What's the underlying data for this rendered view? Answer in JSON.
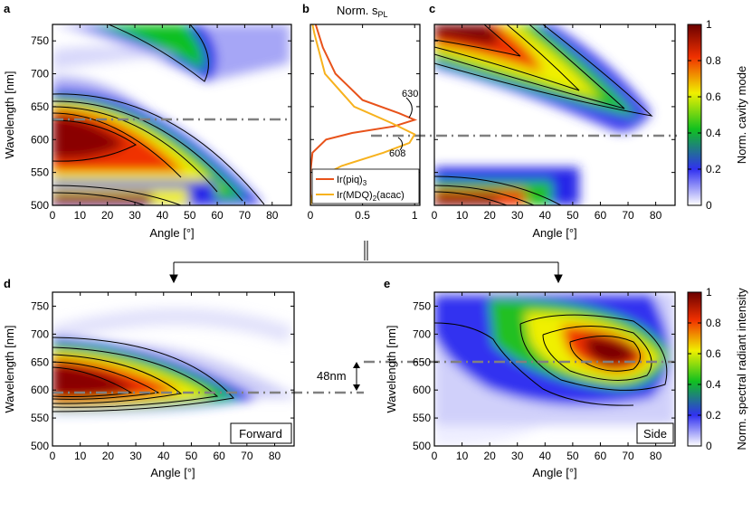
{
  "panels": {
    "a": {
      "label": "a"
    },
    "b": {
      "label": "b",
      "title": "Norm. s",
      "title_sub": "PL"
    },
    "c": {
      "label": "c"
    },
    "d": {
      "label": "d",
      "tag": "Forward"
    },
    "e": {
      "label": "e",
      "tag": "Side"
    }
  },
  "colorbar_top": {
    "label": "Norm. cavity mode",
    "ticks": [
      "0",
      "0.2",
      "0.4",
      "0.6",
      "0.8",
      "1"
    ]
  },
  "colorbar_bottom": {
    "label": "Norm. spectral radiant intensity",
    "ticks": [
      "0",
      "0.2",
      "0.4",
      "0.6",
      "0.8",
      "1"
    ]
  },
  "annotations": {
    "peak1": "630",
    "peak2": "608",
    "shift": "48nm"
  },
  "legend": [
    {
      "name": "Ir(piq)",
      "sub": "3",
      "color": "#e8521a"
    },
    {
      "name": "Ir(MDQ)",
      "sub": "2",
      "tail": "(acac)",
      "color": "#f7b21e"
    }
  ],
  "colors": {
    "colormap": [
      "#ffffff",
      "#3030f0",
      "#10c020",
      "#f0f000",
      "#f03000",
      "#6a0000"
    ]
  },
  "chart_data": [
    {
      "id": "a",
      "type": "heatmap",
      "xlabel": "Angle [°]",
      "ylabel": "Wavelength [nm]",
      "xlim": [
        0,
        87
      ],
      "ylim": [
        500,
        775
      ],
      "xticks": [
        0,
        10,
        20,
        30,
        40,
        50,
        60,
        70,
        80
      ],
      "yticks": [
        500,
        550,
        600,
        650,
        700,
        750
      ],
      "dashed_line_wavelength": 630
    },
    {
      "id": "b",
      "type": "line",
      "xlabel": "",
      "ylabel": "",
      "xlim": [
        0,
        1.05
      ],
      "ylim": [
        500,
        775
      ],
      "xticks": [
        "0",
        "0.5",
        "1"
      ],
      "series": [
        {
          "name": "Ir(piq)3",
          "peak_wavelength": 630,
          "y": [
            500,
            550,
            580,
            600,
            610,
            620,
            630,
            640,
            660,
            700,
            740,
            775
          ],
          "x": [
            0.0,
            0.0,
            0.02,
            0.15,
            0.4,
            0.8,
            1.0,
            0.85,
            0.5,
            0.24,
            0.12,
            0.05
          ]
        },
        {
          "name": "Ir(MDQ)2(acac)",
          "peak_wavelength": 608,
          "y": [
            500,
            540,
            560,
            580,
            595,
            608,
            625,
            650,
            700,
            760,
            775
          ],
          "x": [
            0.0,
            0.05,
            0.3,
            0.7,
            0.95,
            1.0,
            0.78,
            0.42,
            0.14,
            0.04,
            0.02
          ]
        }
      ]
    },
    {
      "id": "c",
      "type": "heatmap",
      "xlabel": "Angle [°]",
      "ylabel": "",
      "xlim": [
        0,
        87
      ],
      "ylim": [
        500,
        775
      ],
      "xticks": [
        0,
        10,
        20,
        30,
        40,
        50,
        60,
        70,
        80
      ],
      "dashed_line_wavelength": 608
    },
    {
      "id": "d",
      "type": "heatmap",
      "xlabel": "Angle [°]",
      "ylabel": "Wavelength [nm]",
      "xlim": [
        0,
        87
      ],
      "ylim": [
        500,
        775
      ],
      "xticks": [
        0,
        10,
        20,
        30,
        40,
        50,
        60,
        70,
        80
      ],
      "yticks": [
        500,
        550,
        600,
        650,
        700,
        750
      ],
      "dashed_line_wavelength": 624
    },
    {
      "id": "e",
      "type": "heatmap",
      "xlabel": "Angle [°]",
      "ylabel": "Wavelength [nm]",
      "xlim": [
        0,
        87
      ],
      "ylim": [
        500,
        775
      ],
      "xticks": [
        0,
        10,
        20,
        30,
        40,
        50,
        60,
        70,
        80
      ],
      "yticks": [
        500,
        550,
        600,
        650,
        700,
        750
      ],
      "dashed_line_wavelength": 672
    }
  ]
}
